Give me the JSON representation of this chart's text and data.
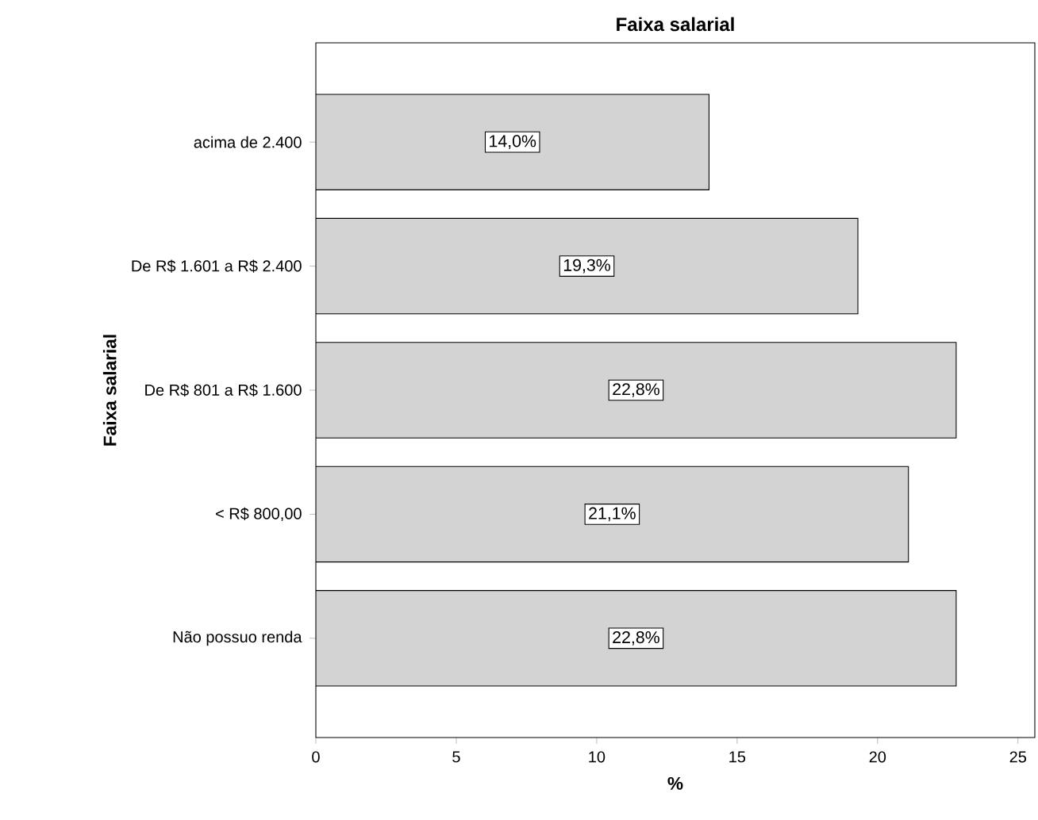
{
  "chart_data": {
    "type": "bar",
    "orientation": "horizontal",
    "title": "Faixa salarial",
    "xlabel": "%",
    "ylabel": "Faixa salarial",
    "categories": [
      "acima de 2.400",
      "De R$ 1.601 a R$ 2.400",
      "De R$ 801 a R$ 1.600",
      "<  R$ 800,00",
      "Não possuo renda"
    ],
    "values": [
      14.0,
      19.3,
      22.8,
      21.1,
      22.8
    ],
    "value_labels": [
      "14,0%",
      "19,3%",
      "22,8%",
      "21,1%",
      "22,8%"
    ],
    "color": "#d3d3d3",
    "xlim": [
      0,
      25.6
    ],
    "xticks": [
      0,
      5,
      10,
      15,
      20,
      25
    ]
  }
}
